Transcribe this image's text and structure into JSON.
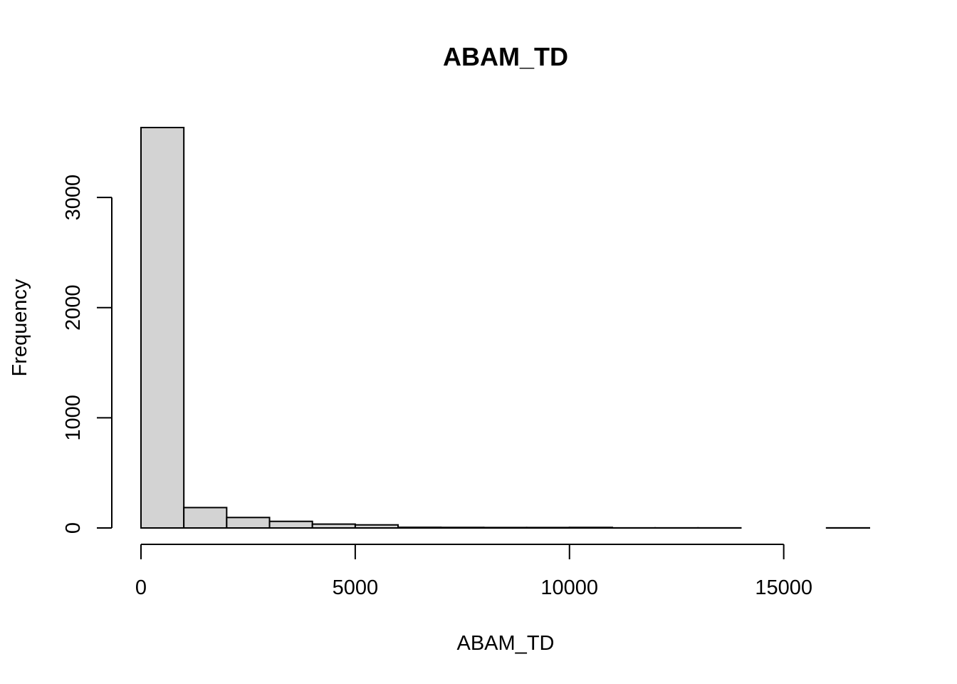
{
  "chart_data": {
    "type": "bar",
    "title": "ABAM_TD",
    "xlabel": "ABAM_TD",
    "ylabel": "Frequency",
    "bins": [
      {
        "x0": 0,
        "x1": 1000,
        "count": 3635
      },
      {
        "x0": 1000,
        "x1": 2000,
        "count": 185
      },
      {
        "x0": 2000,
        "x1": 3000,
        "count": 95
      },
      {
        "x0": 3000,
        "x1": 4000,
        "count": 60
      },
      {
        "x0": 4000,
        "x1": 5000,
        "count": 35
      },
      {
        "x0": 5000,
        "x1": 6000,
        "count": 28
      },
      {
        "x0": 6000,
        "x1": 7000,
        "count": 6
      },
      {
        "x0": 7000,
        "x1": 8000,
        "count": 5
      },
      {
        "x0": 8000,
        "x1": 9000,
        "count": 4
      },
      {
        "x0": 9000,
        "x1": 10000,
        "count": 4
      },
      {
        "x0": 10000,
        "x1": 11000,
        "count": 5
      },
      {
        "x0": 11000,
        "x1": 12000,
        "count": 1
      },
      {
        "x0": 12000,
        "x1": 13000,
        "count": 1
      },
      {
        "x0": 13000,
        "x1": 14000,
        "count": 1
      },
      {
        "x0": 14000,
        "x1": 15000,
        "count": 0
      },
      {
        "x0": 15000,
        "x1": 16000,
        "count": 0
      },
      {
        "x0": 16000,
        "x1": 17000,
        "count": 1
      }
    ],
    "xticks": [
      0,
      5000,
      10000,
      15000
    ],
    "yticks": [
      0,
      1000,
      2000,
      3000
    ],
    "xlim": [
      0,
      17000
    ],
    "ylim": [
      0,
      3635
    ],
    "bar_color": "#d3d3d3",
    "grid": false,
    "legend": "none"
  }
}
